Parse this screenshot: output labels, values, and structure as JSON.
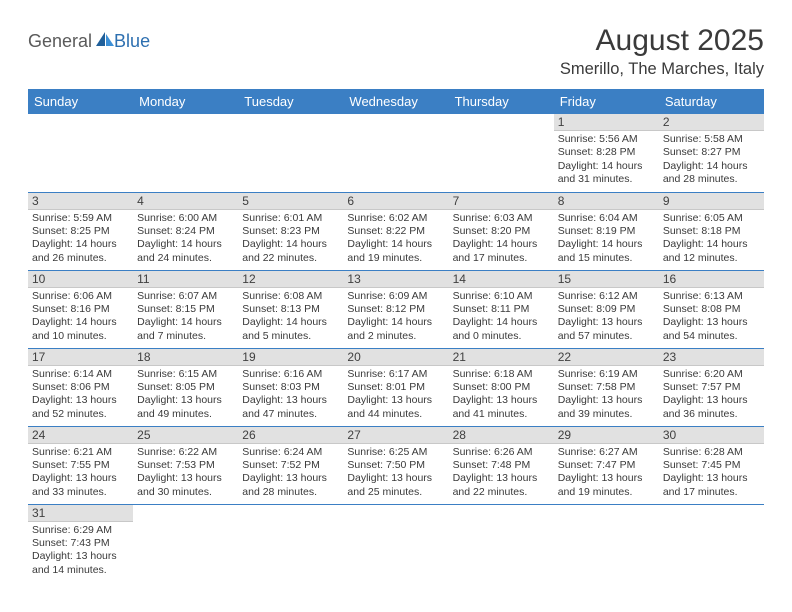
{
  "logo": {
    "text1": "General",
    "text2": "Blue"
  },
  "title": "August 2025",
  "location": "Smerillo, The Marches, Italy",
  "colors": {
    "header_bg": "#3b7fc4",
    "header_text": "#ffffff",
    "daynum_bg": "#e1e1e1",
    "line": "#3b7fc4",
    "text": "#3a3a3a",
    "logo_blue": "#2d6fb0"
  },
  "daysOfWeek": [
    "Sunday",
    "Monday",
    "Tuesday",
    "Wednesday",
    "Thursday",
    "Friday",
    "Saturday"
  ],
  "weeks": [
    [
      null,
      null,
      null,
      null,
      null,
      {
        "n": "1",
        "sr": "5:56 AM",
        "ss": "8:28 PM",
        "dh": "14",
        "dm": "31"
      },
      {
        "n": "2",
        "sr": "5:58 AM",
        "ss": "8:27 PM",
        "dh": "14",
        "dm": "28"
      }
    ],
    [
      {
        "n": "3",
        "sr": "5:59 AM",
        "ss": "8:25 PM",
        "dh": "14",
        "dm": "26"
      },
      {
        "n": "4",
        "sr": "6:00 AM",
        "ss": "8:24 PM",
        "dh": "14",
        "dm": "24"
      },
      {
        "n": "5",
        "sr": "6:01 AM",
        "ss": "8:23 PM",
        "dh": "14",
        "dm": "22"
      },
      {
        "n": "6",
        "sr": "6:02 AM",
        "ss": "8:22 PM",
        "dh": "14",
        "dm": "19"
      },
      {
        "n": "7",
        "sr": "6:03 AM",
        "ss": "8:20 PM",
        "dh": "14",
        "dm": "17"
      },
      {
        "n": "8",
        "sr": "6:04 AM",
        "ss": "8:19 PM",
        "dh": "14",
        "dm": "15"
      },
      {
        "n": "9",
        "sr": "6:05 AM",
        "ss": "8:18 PM",
        "dh": "14",
        "dm": "12"
      }
    ],
    [
      {
        "n": "10",
        "sr": "6:06 AM",
        "ss": "8:16 PM",
        "dh": "14",
        "dm": "10"
      },
      {
        "n": "11",
        "sr": "6:07 AM",
        "ss": "8:15 PM",
        "dh": "14",
        "dm": "7"
      },
      {
        "n": "12",
        "sr": "6:08 AM",
        "ss": "8:13 PM",
        "dh": "14",
        "dm": "5"
      },
      {
        "n": "13",
        "sr": "6:09 AM",
        "ss": "8:12 PM",
        "dh": "14",
        "dm": "2"
      },
      {
        "n": "14",
        "sr": "6:10 AM",
        "ss": "8:11 PM",
        "dh": "14",
        "dm": "0"
      },
      {
        "n": "15",
        "sr": "6:12 AM",
        "ss": "8:09 PM",
        "dh": "13",
        "dm": "57"
      },
      {
        "n": "16",
        "sr": "6:13 AM",
        "ss": "8:08 PM",
        "dh": "13",
        "dm": "54"
      }
    ],
    [
      {
        "n": "17",
        "sr": "6:14 AM",
        "ss": "8:06 PM",
        "dh": "13",
        "dm": "52"
      },
      {
        "n": "18",
        "sr": "6:15 AM",
        "ss": "8:05 PM",
        "dh": "13",
        "dm": "49"
      },
      {
        "n": "19",
        "sr": "6:16 AM",
        "ss": "8:03 PM",
        "dh": "13",
        "dm": "47"
      },
      {
        "n": "20",
        "sr": "6:17 AM",
        "ss": "8:01 PM",
        "dh": "13",
        "dm": "44"
      },
      {
        "n": "21",
        "sr": "6:18 AM",
        "ss": "8:00 PM",
        "dh": "13",
        "dm": "41"
      },
      {
        "n": "22",
        "sr": "6:19 AM",
        "ss": "7:58 PM",
        "dh": "13",
        "dm": "39"
      },
      {
        "n": "23",
        "sr": "6:20 AM",
        "ss": "7:57 PM",
        "dh": "13",
        "dm": "36"
      }
    ],
    [
      {
        "n": "24",
        "sr": "6:21 AM",
        "ss": "7:55 PM",
        "dh": "13",
        "dm": "33"
      },
      {
        "n": "25",
        "sr": "6:22 AM",
        "ss": "7:53 PM",
        "dh": "13",
        "dm": "30"
      },
      {
        "n": "26",
        "sr": "6:24 AM",
        "ss": "7:52 PM",
        "dh": "13",
        "dm": "28"
      },
      {
        "n": "27",
        "sr": "6:25 AM",
        "ss": "7:50 PM",
        "dh": "13",
        "dm": "25"
      },
      {
        "n": "28",
        "sr": "6:26 AM",
        "ss": "7:48 PM",
        "dh": "13",
        "dm": "22"
      },
      {
        "n": "29",
        "sr": "6:27 AM",
        "ss": "7:47 PM",
        "dh": "13",
        "dm": "19"
      },
      {
        "n": "30",
        "sr": "6:28 AM",
        "ss": "7:45 PM",
        "dh": "13",
        "dm": "17"
      }
    ],
    [
      {
        "n": "31",
        "sr": "6:29 AM",
        "ss": "7:43 PM",
        "dh": "13",
        "dm": "14"
      },
      null,
      null,
      null,
      null,
      null,
      null
    ]
  ]
}
